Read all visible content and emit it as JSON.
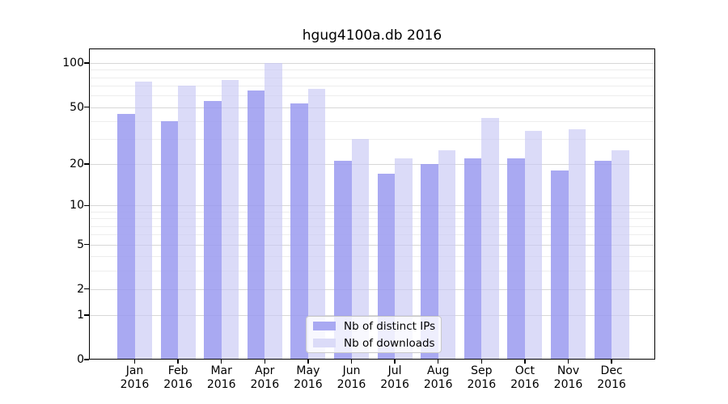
{
  "chart_data": {
    "type": "bar",
    "title": "hgug4100a.db 2016",
    "year": "2016",
    "categories": [
      "Jan",
      "Feb",
      "Mar",
      "Apr",
      "May",
      "Jun",
      "Jul",
      "Aug",
      "Sep",
      "Oct",
      "Nov",
      "Dec"
    ],
    "series": [
      {
        "name": "Nb of distinct IPs",
        "color": "#a9a9f2",
        "alpha": 0.85,
        "values": [
          45,
          40,
          55,
          65,
          53,
          21,
          17,
          20,
          22,
          22,
          18,
          21
        ]
      },
      {
        "name": "Nb of downloads",
        "color": "#dbdbf8",
        "alpha": 0.65,
        "values": [
          75,
          70,
          77,
          100,
          67,
          30,
          22,
          25,
          42,
          34,
          35,
          25
        ]
      }
    ],
    "xlabel": "",
    "ylabel": "",
    "yscale": "log1p",
    "ylim": [
      0,
      126
    ],
    "yticks": [
      0,
      1,
      2,
      5,
      10,
      20,
      50,
      100
    ],
    "yticks_minor": [
      3,
      4,
      6,
      7,
      8,
      9,
      30,
      40,
      60,
      70,
      80,
      90
    ],
    "grid": "horizontal",
    "legend_position": "lower center",
    "colors": {
      "grid_major": "#d7d7d7",
      "grid_minor": "#ededed",
      "axis": "#000000",
      "background": "#ffffff"
    }
  }
}
